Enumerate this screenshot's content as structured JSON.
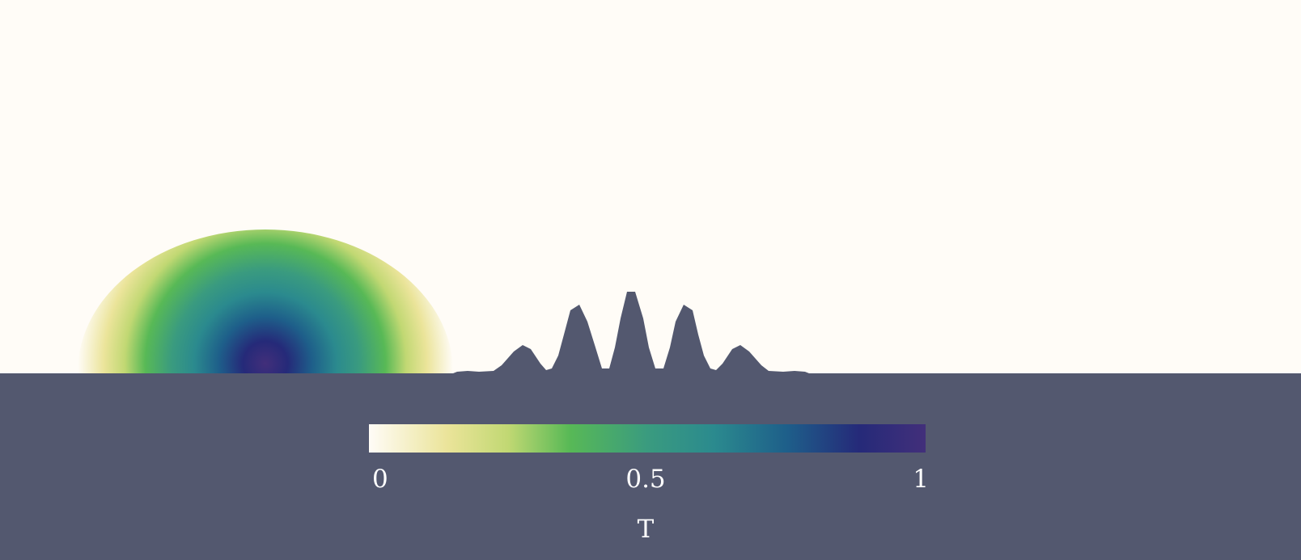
{
  "colorbar": {
    "title": "T",
    "ticks": [
      "0",
      "0.5",
      "1"
    ],
    "range": [
      0,
      1
    ],
    "colormap": "white-yellow-green-teal-blue-purple",
    "stops": [
      {
        "v": 0.0,
        "color": "#fffcf7"
      },
      {
        "v": 0.14,
        "color": "#ebe49a"
      },
      {
        "v": 0.25,
        "color": "#c1d873"
      },
      {
        "v": 0.36,
        "color": "#58b956"
      },
      {
        "v": 0.5,
        "color": "#3a9b7f"
      },
      {
        "v": 0.62,
        "color": "#2b8a8e"
      },
      {
        "v": 0.75,
        "color": "#1e5f8a"
      },
      {
        "v": 0.88,
        "color": "#252a79"
      },
      {
        "v": 1.0,
        "color": "#422f7a"
      }
    ]
  },
  "colors": {
    "background": "#fffcf7",
    "ground": "#53586f"
  }
}
